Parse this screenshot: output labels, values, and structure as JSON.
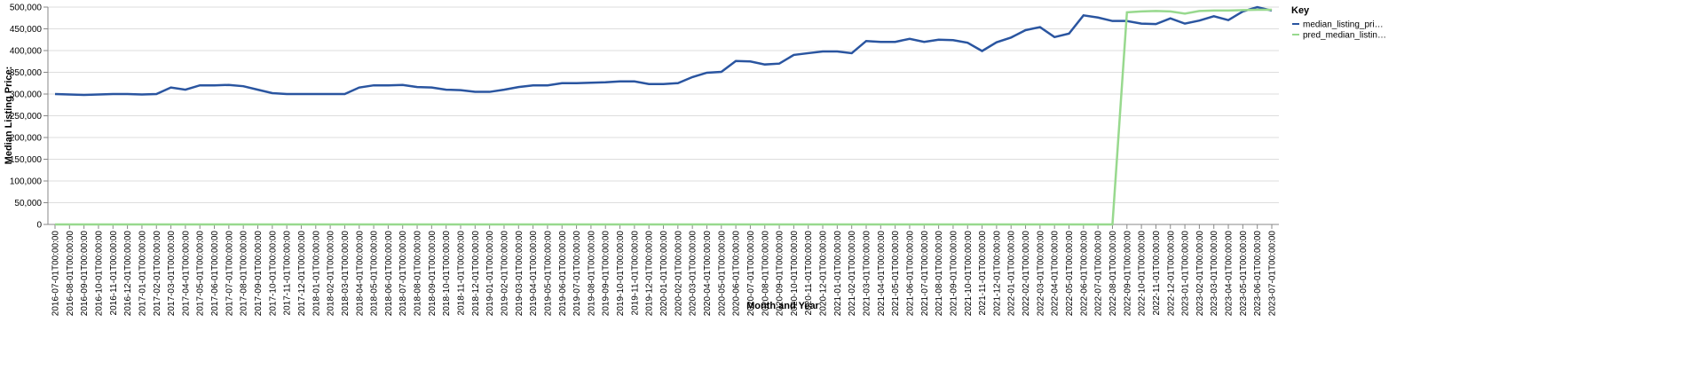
{
  "chart_data": {
    "type": "line",
    "x_label": "Month and Year",
    "y_label": "Median Listing Price:",
    "legend_title": "Key",
    "legend_position": "right",
    "grid": true,
    "ylim": [
      0,
      500000
    ],
    "yticks": [
      {
        "value": 0,
        "label": "0"
      },
      {
        "value": 50000,
        "label": "50,000"
      },
      {
        "value": 100000,
        "label": "100,000"
      },
      {
        "value": 150000,
        "label": "150,000"
      },
      {
        "value": 200000,
        "label": "200,000"
      },
      {
        "value": 250000,
        "label": "250,000"
      },
      {
        "value": 300000,
        "label": "300,000"
      },
      {
        "value": 350000,
        "label": "350,000"
      },
      {
        "value": 400000,
        "label": "400,000"
      },
      {
        "value": 450000,
        "label": "450,000"
      },
      {
        "value": 500000,
        "label": "500,000"
      }
    ],
    "categories": [
      "2016-07-01T00:00:00",
      "2016-08-01T00:00:00",
      "2016-09-01T00:00:00",
      "2016-10-01T00:00:00",
      "2016-11-01T00:00:00",
      "2016-12-01T00:00:00",
      "2017-01-01T00:00:00",
      "2017-02-01T00:00:00",
      "2017-03-01T00:00:00",
      "2017-04-01T00:00:00",
      "2017-05-01T00:00:00",
      "2017-06-01T00:00:00",
      "2017-07-01T00:00:00",
      "2017-08-01T00:00:00",
      "2017-09-01T00:00:00",
      "2017-10-01T00:00:00",
      "2017-11-01T00:00:00",
      "2017-12-01T00:00:00",
      "2018-01-01T00:00:00",
      "2018-02-01T00:00:00",
      "2018-03-01T00:00:00",
      "2018-04-01T00:00:00",
      "2018-05-01T00:00:00",
      "2018-06-01T00:00:00",
      "2018-07-01T00:00:00",
      "2018-08-01T00:00:00",
      "2018-09-01T00:00:00",
      "2018-10-01T00:00:00",
      "2018-11-01T00:00:00",
      "2018-12-01T00:00:00",
      "2019-01-01T00:00:00",
      "2019-02-01T00:00:00",
      "2019-03-01T00:00:00",
      "2019-04-01T00:00:00",
      "2019-05-01T00:00:00",
      "2019-06-01T00:00:00",
      "2019-07-01T00:00:00",
      "2019-08-01T00:00:00",
      "2019-09-01T00:00:00",
      "2019-10-01T00:00:00",
      "2019-11-01T00:00:00",
      "2019-12-01T00:00:00",
      "2020-01-01T00:00:00",
      "2020-02-01T00:00:00",
      "2020-03-01T00:00:00",
      "2020-04-01T00:00:00",
      "2020-05-01T00:00:00",
      "2020-06-01T00:00:00",
      "2020-07-01T00:00:00",
      "2020-08-01T00:00:00",
      "2020-09-01T00:00:00",
      "2020-10-01T00:00:00",
      "2020-11-01T00:00:00",
      "2020-12-01T00:00:00",
      "2021-01-01T00:00:00",
      "2021-02-01T00:00:00",
      "2021-03-01T00:00:00",
      "2021-04-01T00:00:00",
      "2021-05-01T00:00:00",
      "2021-06-01T00:00:00",
      "2021-07-01T00:00:00",
      "2021-08-01T00:00:00",
      "2021-09-01T00:00:00",
      "2021-10-01T00:00:00",
      "2021-11-01T00:00:00",
      "2021-12-01T00:00:00",
      "2022-01-01T00:00:00",
      "2022-02-01T00:00:00",
      "2022-03-01T00:00:00",
      "2022-04-01T00:00:00",
      "2022-05-01T00:00:00",
      "2022-06-01T00:00:00",
      "2022-07-01T00:00:00",
      "2022-08-01T00:00:00",
      "2022-09-01T00:00:00",
      "2022-10-01T00:00:00",
      "2022-11-01T00:00:00",
      "2022-12-01T00:00:00",
      "2023-01-01T00:00:00",
      "2023-02-01T00:00:00",
      "2023-03-01T00:00:00",
      "2023-04-01T00:00:00",
      "2023-05-01T00:00:00",
      "2023-06-01T00:00:00",
      "2023-07-01T00:00:00"
    ],
    "series": [
      {
        "name": "median_listing_pri…",
        "color": "#2a55a0",
        "values": [
          300000,
          299000,
          298000,
          299000,
          300000,
          300000,
          299000,
          300000,
          315000,
          310000,
          320000,
          320000,
          321000,
          318000,
          310000,
          302000,
          300000,
          300000,
          300000,
          300000,
          300000,
          315000,
          320000,
          320000,
          321000,
          316000,
          315000,
          310000,
          309000,
          305000,
          305000,
          310000,
          316000,
          320000,
          320000,
          325000,
          325000,
          326000,
          327000,
          329000,
          329000,
          323000,
          323000,
          325000,
          339000,
          349000,
          351000,
          376000,
          375000,
          368000,
          370000,
          390000,
          394000,
          398000,
          398000,
          394000,
          422000,
          420000,
          420000,
          427000,
          420000,
          425000,
          424000,
          418000,
          399000,
          419000,
          430000,
          447000,
          454000,
          431000,
          439000,
          481000,
          476000,
          468000,
          468000,
          462000,
          461000,
          474000,
          462000,
          469000,
          479000,
          470000,
          490000,
          500000,
          492000
        ]
      },
      {
        "name": "pred_median_listin…",
        "color": "#98d98e",
        "values": [
          0,
          0,
          0,
          0,
          0,
          0,
          0,
          0,
          0,
          0,
          0,
          0,
          0,
          0,
          0,
          0,
          0,
          0,
          0,
          0,
          0,
          0,
          0,
          0,
          0,
          0,
          0,
          0,
          0,
          0,
          0,
          0,
          0,
          0,
          0,
          0,
          0,
          0,
          0,
          0,
          0,
          0,
          0,
          0,
          0,
          0,
          0,
          0,
          0,
          0,
          0,
          0,
          0,
          0,
          0,
          0,
          0,
          0,
          0,
          0,
          0,
          0,
          0,
          0,
          0,
          0,
          0,
          0,
          0,
          0,
          0,
          0,
          0,
          0,
          488000,
          490000,
          491000,
          490000,
          485000,
          491000,
          492000,
          492000,
          493000,
          494000,
          494000
        ]
      }
    ]
  }
}
